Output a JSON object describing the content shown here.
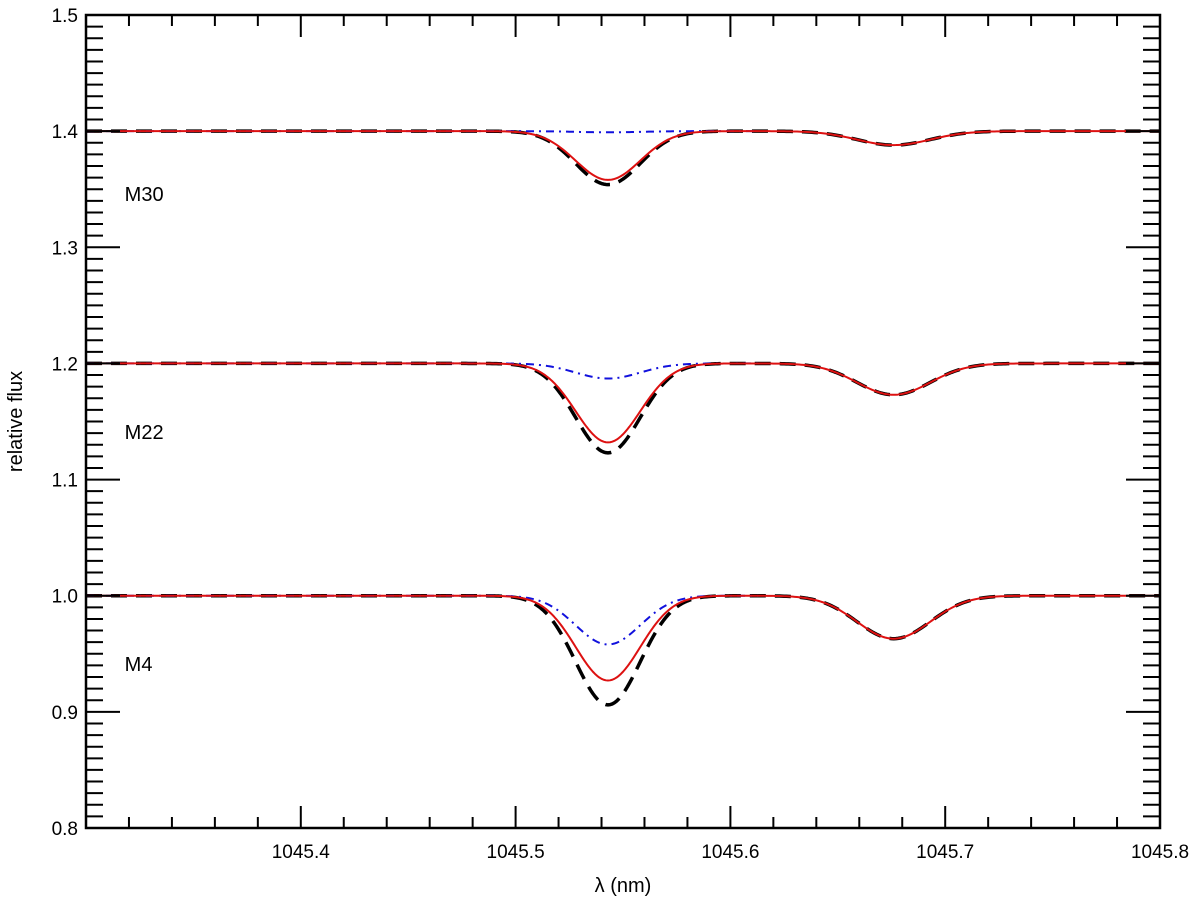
{
  "chart_data": {
    "type": "line",
    "title": "",
    "xlabel": "λ (nm)",
    "ylabel": "relative flux",
    "xlim": [
      1045.3,
      1045.8
    ],
    "ylim": [
      0.8,
      1.5
    ],
    "xticks": [
      1045.4,
      1045.5,
      1045.6,
      1045.7,
      1045.8
    ],
    "xtick_labels": [
      "1045.4",
      "1045.5",
      "1045.6",
      "1045.7",
      "1045.8"
    ],
    "yticks": [
      0.8,
      0.9,
      1.0,
      1.1,
      1.2,
      1.3,
      1.4,
      1.5
    ],
    "ytick_labels": [
      "0.8",
      "0.9",
      "1.0",
      "1.1",
      "1.2",
      "1.3",
      "1.4",
      "1.5"
    ],
    "x_minor_step": 0.02,
    "y_minor_step": 0.01,
    "grid": false,
    "colors": {
      "dashed": "#000000",
      "solid": "#dd1111",
      "dashdot": "#1111dd"
    },
    "groups": [
      {
        "label": "M30",
        "offset": 1.4,
        "label_x": 1045.318,
        "label_y": 1.34,
        "features": {
          "line1_center": 1045.543,
          "line1_sigma": 0.015,
          "line2_center": 1045.676,
          "line2_sigma": 0.017,
          "dashed_depth1": 0.046,
          "solid_depth1": 0.042,
          "dashdot_depth1": 0.001,
          "depth2": 0.012
        }
      },
      {
        "label": "M22",
        "offset": 1.2,
        "label_x": 1045.318,
        "label_y": 1.135,
        "features": {
          "line1_center": 1045.543,
          "line1_sigma": 0.015,
          "line2_center": 1045.676,
          "line2_sigma": 0.017,
          "dashed_depth1": 0.077,
          "solid_depth1": 0.068,
          "dashdot_depth1": 0.013,
          "depth2": 0.027
        }
      },
      {
        "label": "M4",
        "offset": 1.0,
        "label_x": 1045.318,
        "label_y": 0.935,
        "features": {
          "line1_center": 1045.543,
          "line1_sigma": 0.015,
          "line2_center": 1045.676,
          "line2_sigma": 0.017,
          "dashed_depth1": 0.094,
          "solid_depth1": 0.073,
          "dashdot_depth1": 0.042,
          "depth2": 0.037
        }
      }
    ]
  }
}
